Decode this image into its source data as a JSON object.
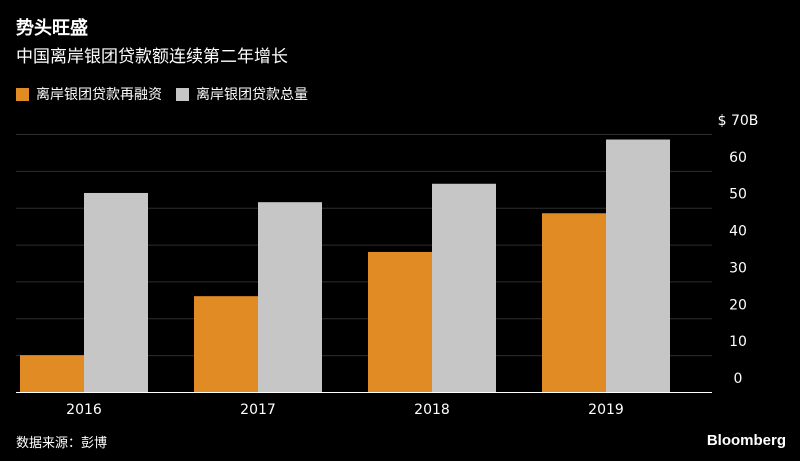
{
  "header": {
    "title": "势头旺盛",
    "subtitle": "中国离岸银团贷款额连续第二年增长"
  },
  "footer": {
    "source": "数据来源：彭博",
    "brand": "Bloomberg"
  },
  "chart_data": {
    "type": "bar",
    "categories": [
      "2016",
      "2017",
      "2018",
      "2019"
    ],
    "series": [
      {
        "name": "离岸银团贷款再融资",
        "color": "#e08b24",
        "values": [
          10,
          26,
          38,
          48.5
        ]
      },
      {
        "name": "离岸银团贷款总量",
        "color": "#c6c6c6",
        "values": [
          54,
          51.5,
          56.5,
          68.5
        ]
      }
    ],
    "yaxis": {
      "min": 0,
      "max": 70,
      "ticks": [
        0,
        10,
        20,
        30,
        40,
        50,
        60,
        70
      ],
      "tick_labels": [
        "0",
        "10",
        "20",
        "30",
        "40",
        "50",
        "60",
        "$ 70B"
      ],
      "position": "right"
    },
    "grid": true,
    "legend": "top-left"
  }
}
